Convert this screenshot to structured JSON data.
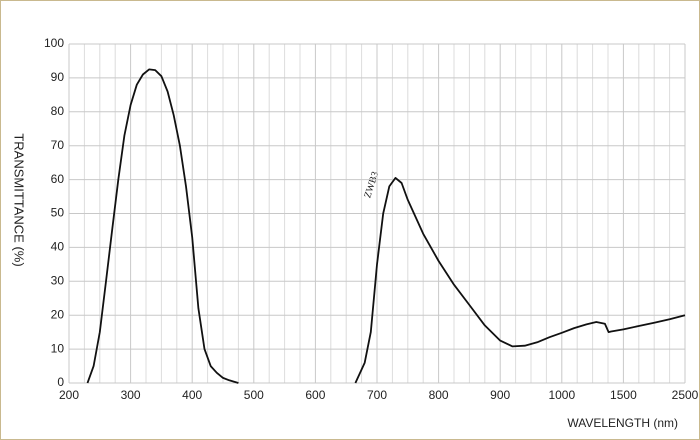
{
  "chart_data": {
    "type": "line",
    "x_label": "WAVELENGTH (nm)",
    "y_label": "TRANSMITTANCE  (%)",
    "annotation": "ZWB3",
    "xlim": [
      200,
      2500
    ],
    "xticks": [
      200,
      300,
      400,
      500,
      600,
      700,
      800,
      900,
      1000,
      1500,
      2500
    ],
    "ylim": [
      0,
      100
    ],
    "yticks": [
      0,
      10,
      20,
      30,
      40,
      50,
      60,
      70,
      80,
      90,
      100
    ],
    "grid": true,
    "x_minor_subdivisions": 4,
    "series": [
      {
        "color": "#111111",
        "x": [
          230,
          240,
          250,
          260,
          270,
          280,
          290,
          300,
          310,
          320,
          330,
          340,
          350,
          360,
          370,
          380,
          390,
          400,
          410,
          420,
          430,
          440,
          450,
          460,
          475
        ],
        "values": [
          0,
          5,
          15,
          30,
          45,
          60,
          73,
          82,
          88,
          91,
          92.5,
          92.3,
          90.5,
          86,
          79,
          70,
          58,
          43,
          22,
          10,
          5,
          3,
          1.5,
          0.8,
          0
        ]
      },
      {
        "color": "#111111",
        "x": [
          665,
          680,
          690,
          695,
          700,
          710,
          720,
          730,
          740,
          750,
          775,
          800,
          825,
          850,
          875,
          900,
          920,
          940,
          960,
          980,
          1000,
          1100,
          1200,
          1280,
          1350,
          1380,
          1400,
          1500,
          1750,
          2000,
          2250,
          2500
        ],
        "values": [
          0,
          6,
          15,
          25,
          35,
          50,
          58,
          60.5,
          59,
          54,
          44,
          36,
          29,
          23,
          17,
          12.5,
          10.8,
          11,
          12,
          13.5,
          14.8,
          16.2,
          17.3,
          18,
          17.5,
          15,
          15.2,
          15.8,
          16.8,
          17.8,
          18.8,
          20
        ]
      }
    ]
  }
}
